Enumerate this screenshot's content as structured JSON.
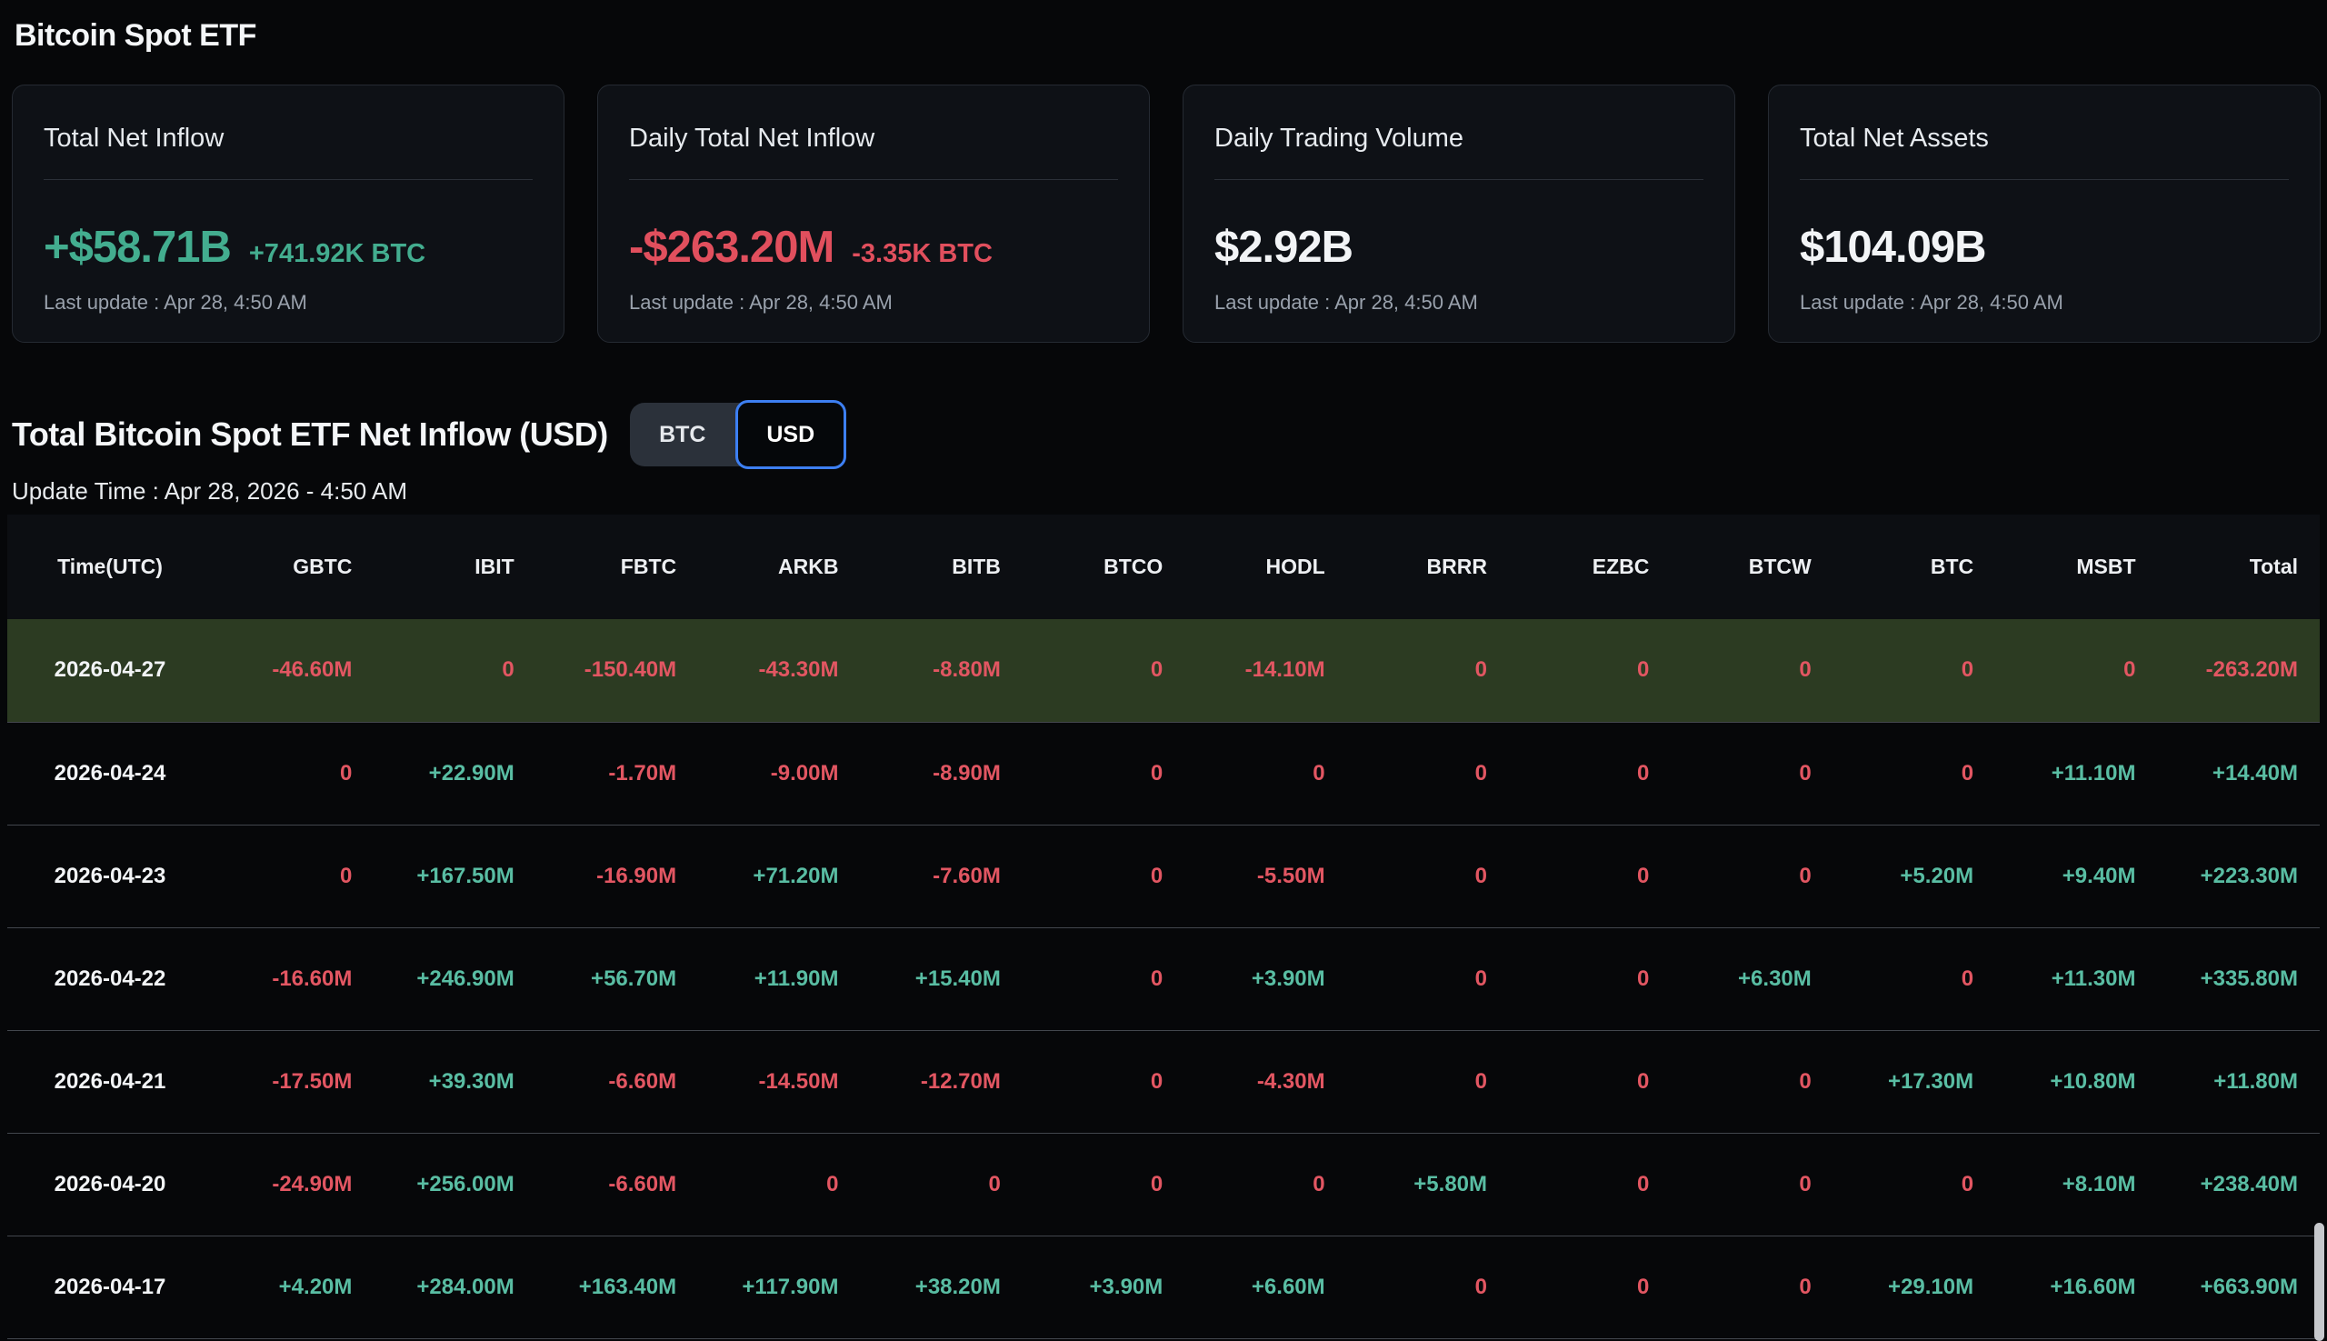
{
  "page": {
    "title": "Bitcoin Spot ETF"
  },
  "cards": [
    {
      "title": "Total Net Inflow",
      "value": "+$58.71B",
      "suffix": "+741.92K BTC",
      "tone": "green",
      "last_update": "Last update : Apr 28, 4:50 AM"
    },
    {
      "title": "Daily Total Net Inflow",
      "value": "-$263.20M",
      "suffix": "-3.35K BTC",
      "tone": "red",
      "last_update": "Last update : Apr 28, 4:50 AM"
    },
    {
      "title": "Daily Trading Volume",
      "value": "$2.92B",
      "suffix": "",
      "tone": "white",
      "last_update": "Last update : Apr 28, 4:50 AM"
    },
    {
      "title": "Total Net Assets",
      "value": "$104.09B",
      "suffix": "",
      "tone": "white",
      "last_update": "Last update : Apr 28, 4:50 AM"
    }
  ],
  "section": {
    "title": "Total Bitcoin Spot ETF Net Inflow (USD)",
    "toggle": {
      "options": [
        "BTC",
        "USD"
      ],
      "selected": "USD"
    },
    "update_time": "Update Time : Apr 28, 2026 - 4:50 AM"
  },
  "chart_data": {
    "type": "table",
    "title": "Total Bitcoin Spot ETF Net Inflow (USD)",
    "columns": [
      "Time(UTC)",
      "GBTC",
      "IBIT",
      "FBTC",
      "ARKB",
      "BITB",
      "BTCO",
      "HODL",
      "BRRR",
      "EZBC",
      "BTCW",
      "BTC",
      "MSBT",
      "Total"
    ],
    "rows": [
      {
        "date": "2026-04-27",
        "highlighted": true,
        "values": [
          "-46.60M",
          "0",
          "-150.40M",
          "-43.30M",
          "-8.80M",
          "0",
          "-14.10M",
          "0",
          "0",
          "0",
          "0",
          "0",
          "-263.20M"
        ]
      },
      {
        "date": "2026-04-24",
        "highlighted": false,
        "values": [
          "0",
          "+22.90M",
          "-1.70M",
          "-9.00M",
          "-8.90M",
          "0",
          "0",
          "0",
          "0",
          "0",
          "0",
          "+11.10M",
          "+14.40M"
        ]
      },
      {
        "date": "2026-04-23",
        "highlighted": false,
        "values": [
          "0",
          "+167.50M",
          "-16.90M",
          "+71.20M",
          "-7.60M",
          "0",
          "-5.50M",
          "0",
          "0",
          "0",
          "+5.20M",
          "+9.40M",
          "+223.30M"
        ]
      },
      {
        "date": "2026-04-22",
        "highlighted": false,
        "values": [
          "-16.60M",
          "+246.90M",
          "+56.70M",
          "+11.90M",
          "+15.40M",
          "0",
          "+3.90M",
          "0",
          "0",
          "+6.30M",
          "0",
          "+11.30M",
          "+335.80M"
        ]
      },
      {
        "date": "2026-04-21",
        "highlighted": false,
        "values": [
          "-17.50M",
          "+39.30M",
          "-6.60M",
          "-14.50M",
          "-12.70M",
          "0",
          "-4.30M",
          "0",
          "0",
          "0",
          "+17.30M",
          "+10.80M",
          "+11.80M"
        ]
      },
      {
        "date": "2026-04-20",
        "highlighted": false,
        "values": [
          "-24.90M",
          "+256.00M",
          "-6.60M",
          "0",
          "0",
          "0",
          "0",
          "+5.80M",
          "0",
          "0",
          "0",
          "+8.10M",
          "+238.40M"
        ]
      },
      {
        "date": "2026-04-17",
        "highlighted": false,
        "values": [
          "+4.20M",
          "+284.00M",
          "+163.40M",
          "+117.90M",
          "+38.20M",
          "+3.90M",
          "+6.60M",
          "0",
          "0",
          "0",
          "+29.10M",
          "+16.60M",
          "+663.90M"
        ]
      }
    ]
  },
  "colors": {
    "background": "#060709",
    "card_background": "#0e1116",
    "positive_green": "#59bda3",
    "negative_red": "#e25662",
    "card_green": "#43ad8f",
    "card_red": "#e14f5d",
    "highlight_row_background": "#2c3b22",
    "toggle_selected_border": "#3d7ff2"
  }
}
